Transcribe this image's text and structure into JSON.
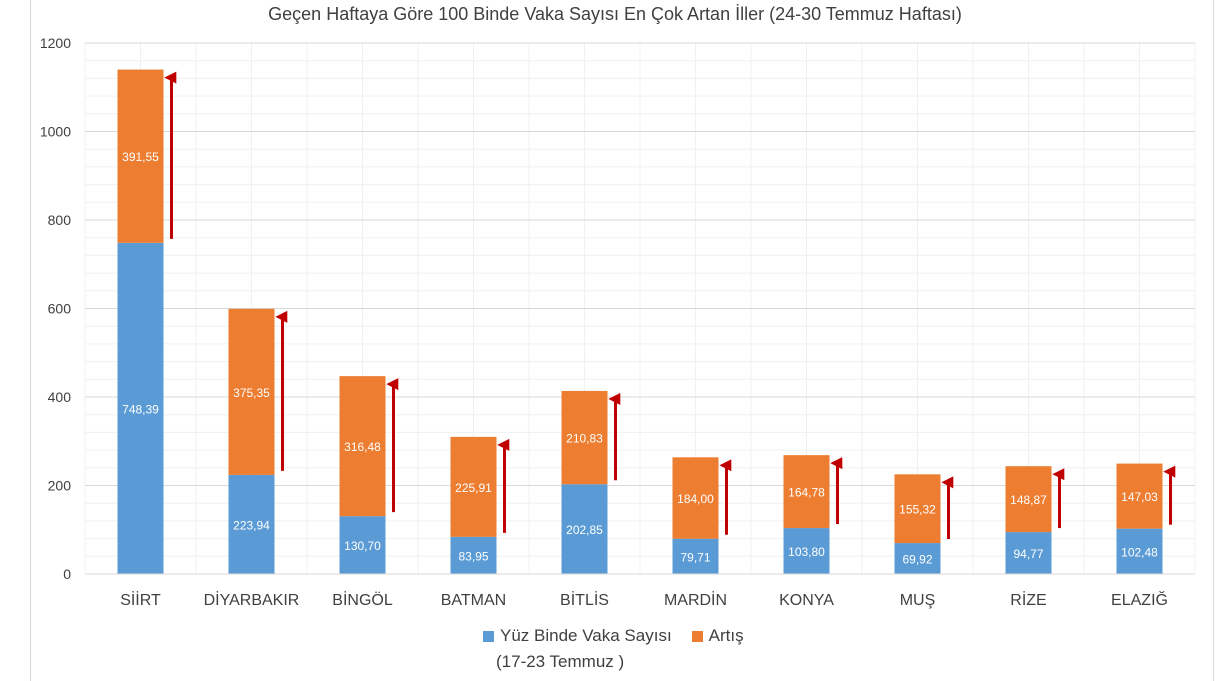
{
  "chart_data": {
    "type": "bar",
    "stacked": true,
    "title": "Geçen Haftaya Göre 100 Binde Vaka Sayısı En Çok Artan İller (24-30 Temmuz Haftası)",
    "categories": [
      "SİİRT",
      "DİYARBAKIR",
      "BİNGÖL",
      "BATMAN",
      "BİTLİS",
      "MARDİN",
      "KONYA",
      "MUŞ",
      "RİZE",
      "ELAZIĞ"
    ],
    "series": [
      {
        "name": "Yüz Binde Vaka Sayısı (17-23 Temmuz )",
        "color": "#5b9bd5",
        "values": [
          748.39,
          223.94,
          130.7,
          83.95,
          202.85,
          79.71,
          103.8,
          69.92,
          94.77,
          102.48
        ],
        "labels": [
          "748,39",
          "223,94",
          "130,70",
          "83,95",
          "202,85",
          "79,71",
          "103,80",
          "69,92",
          "94,77",
          "102,48"
        ]
      },
      {
        "name": "Artış",
        "color": "#ed7d31",
        "values": [
          391.55,
          375.35,
          316.48,
          225.91,
          210.83,
          184.0,
          164.78,
          155.32,
          148.87,
          147.03
        ],
        "labels": [
          "391,55",
          "375,35",
          "316,48",
          "225,91",
          "210,83",
          "184,00",
          "164,78",
          "155,32",
          "148,87",
          "147,03"
        ]
      }
    ],
    "ylim": [
      0,
      1200
    ],
    "yticks": [
      "0",
      "200",
      "400",
      "600",
      "800",
      "1000",
      "1200"
    ],
    "grid": true,
    "legend": "bottom",
    "arrow_color": "#c00000"
  },
  "legend": {
    "series1_line1": "Yüz Binde Vaka Sayısı",
    "series1_line2": "(17-23 Temmuz )",
    "series2": "Artış"
  }
}
